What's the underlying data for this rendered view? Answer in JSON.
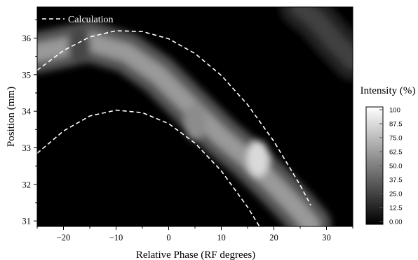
{
  "chart_data": {
    "type": "heatmap",
    "xlabel": "Relative Phase (RF degrees)",
    "ylabel": "Position (mm)",
    "xlim": [
      -25,
      35
    ],
    "ylim": [
      30.85,
      36.85
    ],
    "x_ticks": [
      -20,
      -10,
      0,
      10,
      20,
      30
    ],
    "y_ticks": [
      31,
      32,
      33,
      34,
      35,
      36
    ],
    "colorbar": {
      "title": "Intensity (%)",
      "ticks": [
        "100",
        "87.5",
        "75.0",
        "62.5",
        "50.0",
        "37.5",
        "25.0",
        "12.5",
        "0.00"
      ],
      "range": [
        0,
        100
      ],
      "colormap": "grayscale"
    },
    "legend": {
      "position": "top-left",
      "entries": [
        {
          "label": "Calculation",
          "style": "dashed",
          "color": "#ffffff"
        }
      ]
    },
    "intensity_ridges": [
      {
        "points": [
          [
            -25,
            35.6
          ],
          [
            -15,
            35.9
          ],
          [
            -8,
            35.6
          ],
          [
            -2,
            35.0
          ],
          [
            5,
            34.0
          ],
          [
            10,
            33.3
          ],
          [
            15,
            32.7
          ],
          [
            20,
            32.0
          ],
          [
            24,
            31.4
          ],
          [
            27,
            30.9
          ]
        ],
        "peak": 60
      },
      {
        "points": [
          [
            25,
            36.85
          ],
          [
            28,
            36.5
          ],
          [
            31,
            36.0
          ],
          [
            35,
            35.4
          ]
        ],
        "peak": 25
      }
    ],
    "intensity_hotspots": [
      {
        "x": 17,
        "y": 32.7,
        "value": 85
      },
      {
        "x": 5,
        "y": 33.7,
        "value": 55
      },
      {
        "x": -17,
        "y": 35.8,
        "value": 28
      }
    ],
    "series": [
      {
        "name": "Calculation",
        "style": "dashed",
        "x": [
          -25,
          -20,
          -15,
          -10,
          -5,
          0,
          5,
          10,
          15,
          20,
          25,
          27
        ],
        "y": [
          35.12,
          35.66,
          36.03,
          36.2,
          36.18,
          35.98,
          35.58,
          34.98,
          34.18,
          33.18,
          31.98,
          31.43
        ]
      },
      {
        "x": [
          -25,
          -20,
          -15,
          -10,
          -5,
          0,
          5,
          10,
          15,
          18
        ],
        "y": [
          32.85,
          33.46,
          33.87,
          34.03,
          33.96,
          33.66,
          33.13,
          32.37,
          31.38,
          30.68
        ]
      }
    ]
  }
}
